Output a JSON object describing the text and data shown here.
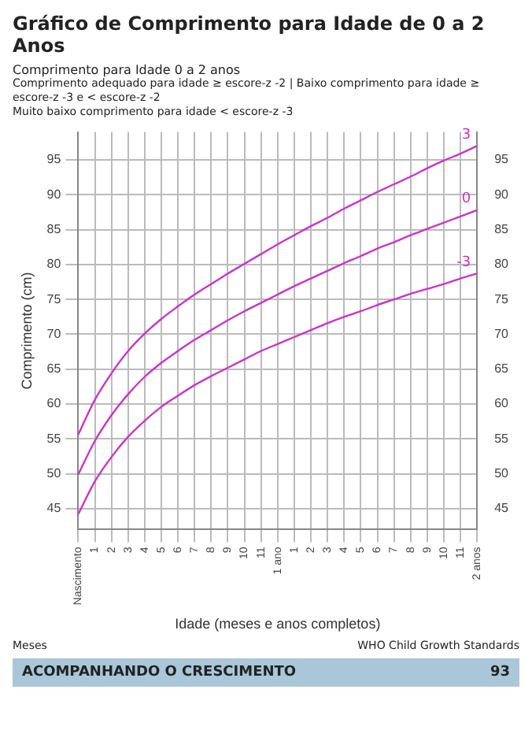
{
  "chart_data": {
    "type": "line",
    "title": "Gráfico de Comprimento para Idade de 0 a 2 Anos",
    "subtitle": "Comprimento para Idade 0 a 2 anos",
    "xlabel": "Idade (meses e anos completos)",
    "ylabel": "Comprimento (cm)",
    "annotations": [
      "Comprimento adequado para idade ≥ escore-z -2 | Baixo comprimento para idade ≥ escore-z -3 e < escore-z -2",
      "Muito baixo comprimento para idade < escore-z -3",
      "Meses",
      "WHO Child Growth Standards",
      "ACOMPANHANDO O CRESCIMENTO",
      "93"
    ],
    "categories": [
      "Nascimento",
      "1",
      "2",
      "3",
      "4",
      "5",
      "6",
      "7",
      "8",
      "9",
      "10",
      "11",
      "1 ano",
      "1",
      "2",
      "3",
      "4",
      "5",
      "6",
      "7",
      "8",
      "9",
      "10",
      "11",
      "2 anos"
    ],
    "series": [
      {
        "name": "3",
        "color": "#cc33cc",
        "values": [
          55.6,
          60.6,
          64.4,
          67.6,
          70.1,
          72.2,
          74.0,
          75.7,
          77.2,
          78.7,
          80.1,
          81.5,
          82.9,
          84.2,
          85.5,
          86.7,
          88.0,
          89.2,
          90.4,
          91.5,
          92.6,
          93.8,
          94.9,
          95.9,
          97.0
        ]
      },
      {
        "name": "0",
        "color": "#cc33cc",
        "values": [
          49.9,
          54.7,
          58.4,
          61.4,
          63.9,
          65.9,
          67.6,
          69.2,
          70.6,
          72.0,
          73.3,
          74.5,
          75.7,
          76.9,
          78.0,
          79.1,
          80.2,
          81.2,
          82.3,
          83.2,
          84.2,
          85.1,
          86.0,
          86.9,
          87.8
        ]
      },
      {
        "name": "-3",
        "color": "#cc33cc",
        "values": [
          44.2,
          48.9,
          52.4,
          55.3,
          57.6,
          59.6,
          61.2,
          62.7,
          64.0,
          65.2,
          66.4,
          67.6,
          68.6,
          69.6,
          70.6,
          71.6,
          72.5,
          73.3,
          74.2,
          75.0,
          75.8,
          76.5,
          77.2,
          78.0,
          78.7
        ]
      }
    ],
    "ylim": [
      42,
      99
    ],
    "yticks": [
      45,
      50,
      55,
      60,
      65,
      70,
      75,
      80,
      85,
      90,
      95
    ],
    "y2lim": [
      42,
      99
    ],
    "y2ticks": [
      45,
      50,
      55,
      60,
      65,
      70,
      75,
      80,
      85,
      90,
      95
    ],
    "grid": true,
    "legend": false,
    "marker": "none",
    "line_style": "solid"
  }
}
